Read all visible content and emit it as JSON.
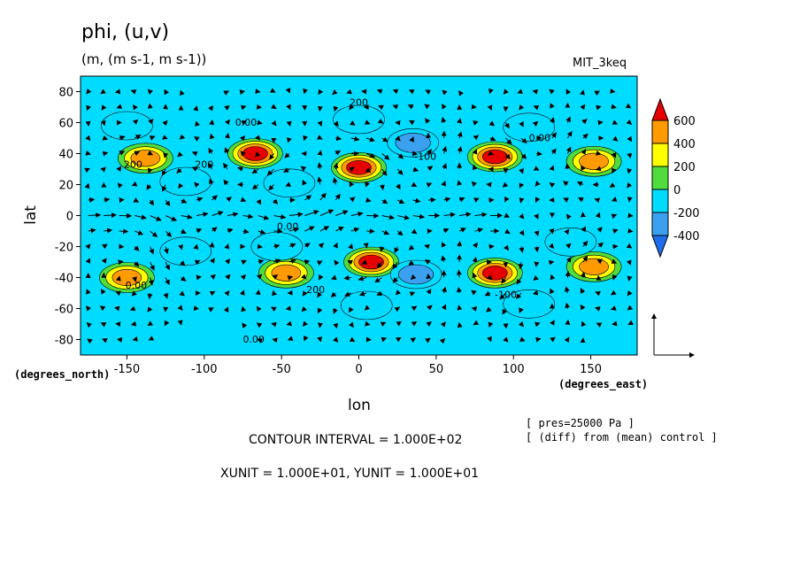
{
  "header": {
    "title": "phi, (u,v)",
    "units": "(m, (m s-1, m s-1))",
    "model": "MIT_3keq"
  },
  "footer": {
    "contour_interval": "CONTOUR INTERVAL = 1.000E+02",
    "vector_units": "XUNIT = 1.000E+01, YUNIT = 1.000E+01",
    "level": "[ pres=25000 Pa ]",
    "diff": "[ (diff) from (mean) control ]"
  },
  "chart_data": {
    "type": "heatmap",
    "title": "phi, (u,v)",
    "subtitle": "(m, (m s-1, m s-1))",
    "xlabel": "lon",
    "ylabel": "lat",
    "x_unit_label": "(degrees_east)",
    "y_unit_label": "(degrees_north)",
    "xlim": [
      -180,
      180
    ],
    "ylim": [
      -90,
      90
    ],
    "x_ticks": [
      -150,
      -100,
      -50,
      0,
      50,
      100,
      150
    ],
    "y_ticks": [
      -80,
      -60,
      -40,
      -20,
      0,
      20,
      40,
      60,
      80
    ],
    "colorbar": {
      "levels": [
        -400,
        -200,
        0,
        200,
        400,
        600
      ],
      "colors": [
        "#1e6eeb",
        "#3ca0f0",
        "#00dcff",
        "#50dc3c",
        "#ffff00",
        "#ff9a00",
        "#e60000"
      ]
    },
    "contour_labels": [
      {
        "text": "200",
        "lon": 0,
        "lat": 71
      },
      {
        "text": "0.00",
        "lon": -73,
        "lat": 58
      },
      {
        "text": "0.00",
        "lon": 117,
        "lat": 48
      },
      {
        "text": "200",
        "lon": -146,
        "lat": 31
      },
      {
        "text": "200",
        "lon": -100,
        "lat": 31
      },
      {
        "text": "-100",
        "lon": 43,
        "lat": 36
      },
      {
        "text": "0.00",
        "lon": -46,
        "lat": -9
      },
      {
        "text": "0.00",
        "lon": -144,
        "lat": -47
      },
      {
        "text": "200",
        "lon": -28,
        "lat": -50
      },
      {
        "text": "-100",
        "lon": 95,
        "lat": -53
      },
      {
        "text": "0.00",
        "lon": -68,
        "lat": -82
      }
    ],
    "features": [
      {
        "kind": "high",
        "value": 600,
        "lon": 0,
        "lat": 31
      },
      {
        "kind": "high",
        "value": 600,
        "lon": 8,
        "lat": -30
      },
      {
        "kind": "high",
        "value": 600,
        "lon": -67,
        "lat": 40
      },
      {
        "kind": "high",
        "value": 600,
        "lon": 88,
        "lat": 38
      },
      {
        "kind": "high",
        "value": 600,
        "lon": 88,
        "lat": -37
      },
      {
        "kind": "high",
        "value": 400,
        "lon": -138,
        "lat": 37
      },
      {
        "kind": "high",
        "value": 400,
        "lon": 152,
        "lat": 35
      },
      {
        "kind": "high",
        "value": 400,
        "lon": -47,
        "lat": -37
      },
      {
        "kind": "high",
        "value": 400,
        "lon": 152,
        "lat": -33
      },
      {
        "kind": "high",
        "value": 400,
        "lon": -150,
        "lat": -40
      },
      {
        "kind": "low",
        "value": -400,
        "lon": 35,
        "lat": 47
      },
      {
        "kind": "low",
        "value": -400,
        "lon": 37,
        "lat": -38
      },
      {
        "kind": "low",
        "value": -200,
        "lon": 0,
        "lat": 62
      },
      {
        "kind": "low",
        "value": -200,
        "lon": 5,
        "lat": -58
      },
      {
        "kind": "low",
        "value": -200,
        "lon": -112,
        "lat": 22
      },
      {
        "kind": "low",
        "value": -200,
        "lon": -45,
        "lat": 21
      },
      {
        "kind": "low",
        "value": -200,
        "lon": -112,
        "lat": -23
      },
      {
        "kind": "low",
        "value": -200,
        "lon": -53,
        "lat": -20
      },
      {
        "kind": "low",
        "value": -200,
        "lon": 137,
        "lat": -17
      },
      {
        "kind": "low",
        "value": -200,
        "lon": 110,
        "lat": 57
      },
      {
        "kind": "low",
        "value": -200,
        "lon": 110,
        "lat": -57
      },
      {
        "kind": "low",
        "value": -200,
        "lon": -150,
        "lat": 58
      }
    ],
    "grid": false
  }
}
